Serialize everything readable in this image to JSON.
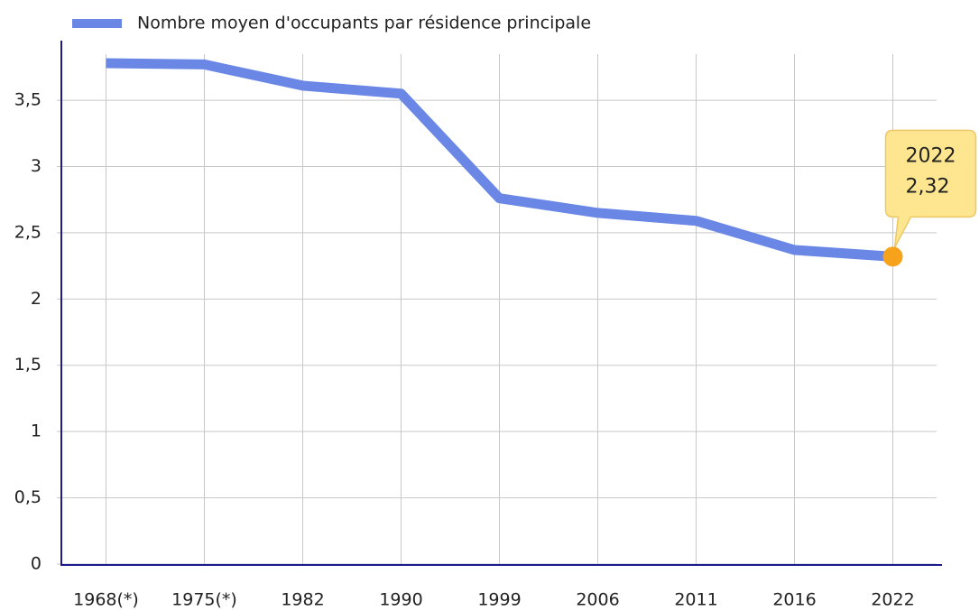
{
  "chart_data": {
    "type": "line",
    "categories": [
      "1968(*)",
      "1975(*)",
      "1982",
      "1990",
      "1999",
      "2006",
      "2011",
      "2016",
      "2022"
    ],
    "series": [
      {
        "name": "Nombre moyen d'occupants par résidence principale",
        "color": "#6a87e6",
        "values": [
          3.78,
          3.77,
          3.61,
          3.55,
          2.76,
          2.65,
          2.59,
          2.37,
          2.32
        ],
        "value_labels": [
          null,
          null,
          null,
          null,
          null,
          null,
          null,
          null,
          "2,32"
        ]
      }
    ],
    "ylim": [
      0,
      3.95
    ],
    "yticks": [
      0,
      {
        "value": 0.5,
        "label": "0,5"
      },
      1,
      {
        "value": 1.5,
        "label": "1,5"
      },
      2,
      {
        "value": 2.5,
        "label": "2,5"
      },
      3,
      {
        "value": 3.5,
        "label": "3,5"
      }
    ],
    "grid": true,
    "highlight_color": "#f7a21b",
    "legend": "top"
  }
}
